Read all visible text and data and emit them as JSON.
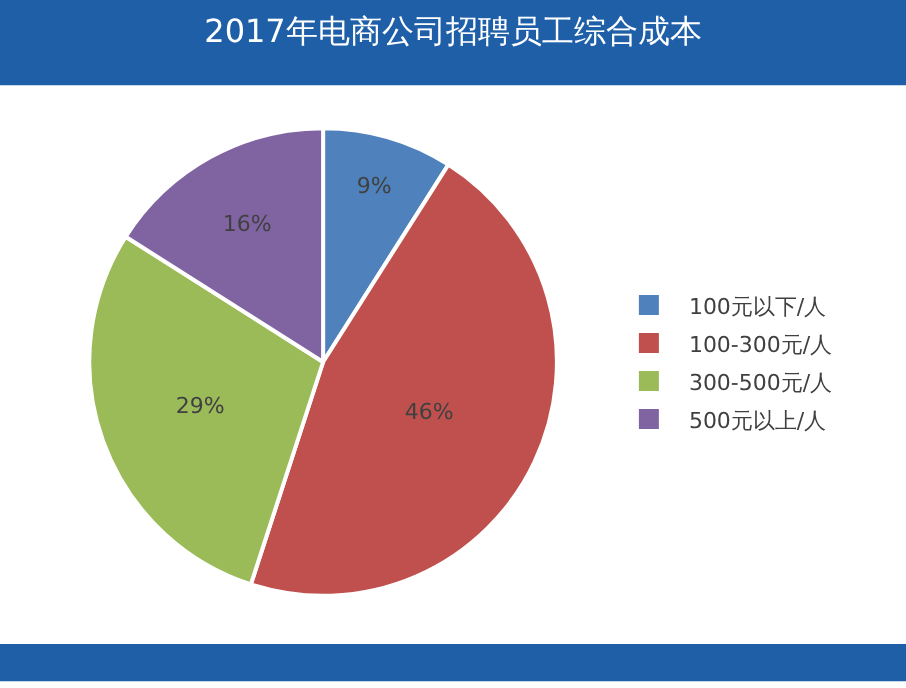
{
  "chart_data": {
    "type": "pie",
    "title": "2017年电商公司招聘员工综合成本",
    "categories": [
      "100元以下/人",
      "100-300元/人",
      "300-500元/人",
      "500元以上/人"
    ],
    "values": [
      9,
      46,
      29,
      16
    ],
    "colors": [
      "#4f81bd",
      "#c0504d",
      "#9bbb59",
      "#8064a2"
    ],
    "value_labels": [
      "9%",
      "46%",
      "29%",
      "16%"
    ],
    "legend": "right"
  }
}
